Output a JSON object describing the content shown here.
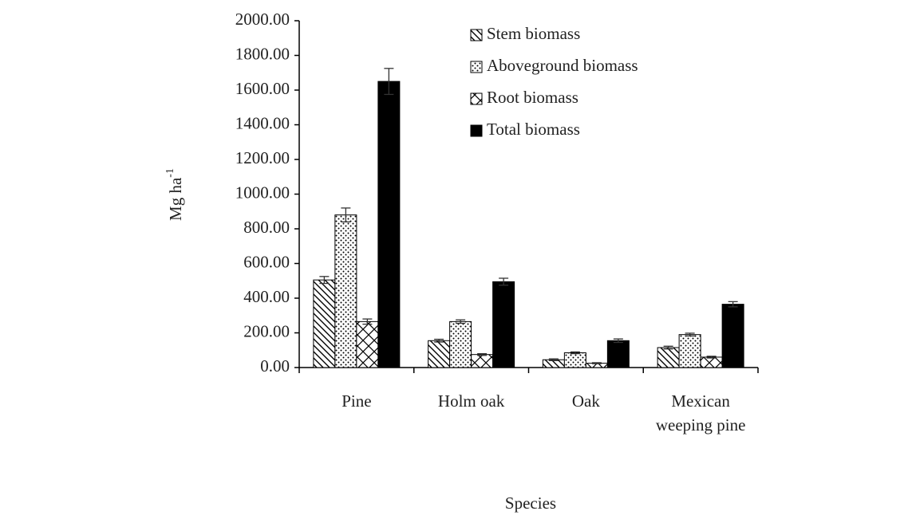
{
  "chart_data": {
    "type": "bar",
    "y_label": "Mg ha",
    "y_label_sup": "-1",
    "x_label": "Species",
    "categories": [
      "Pine",
      "Holm oak",
      "Oak",
      "Mexican weeping pine"
    ],
    "series": [
      {
        "name": "Stem biomass",
        "color": "#000000",
        "pattern": "hatch-back",
        "values": [
          505,
          155,
          45,
          115
        ],
        "errors": [
          20,
          8,
          5,
          8
        ]
      },
      {
        "name": "Aboveground biomass",
        "color": "#000000",
        "pattern": "dots",
        "values": [
          880,
          265,
          85,
          190
        ],
        "errors": [
          40,
          10,
          5,
          8
        ]
      },
      {
        "name": "Root biomass",
        "color": "#000000",
        "pattern": "hatch-cross",
        "values": [
          265,
          75,
          25,
          60
        ],
        "errors": [
          15,
          5,
          3,
          5
        ]
      },
      {
        "name": "Total biomass",
        "color": "#000000",
        "pattern": "solid",
        "values": [
          1650,
          495,
          155,
          365
        ],
        "errors": [
          75,
          20,
          10,
          15
        ]
      }
    ],
    "ylim": [
      0,
      2000
    ],
    "yticks": [
      {
        "value": 0,
        "label": "0.00"
      },
      {
        "value": 200,
        "label": "200.00"
      },
      {
        "value": 400,
        "label": "400.00"
      },
      {
        "value": 600,
        "label": "600.00"
      },
      {
        "value": 800,
        "label": "800.00"
      },
      {
        "value": 1000,
        "label": "1000.00"
      },
      {
        "value": 1200,
        "label": "1200.00"
      },
      {
        "value": 1400,
        "label": "1400.00"
      },
      {
        "value": 1600,
        "label": "1600.00"
      },
      {
        "value": 1800,
        "label": "1800.00"
      },
      {
        "value": 2000,
        "label": "2000.00"
      }
    ],
    "grid": false,
    "legend": "top-right"
  }
}
